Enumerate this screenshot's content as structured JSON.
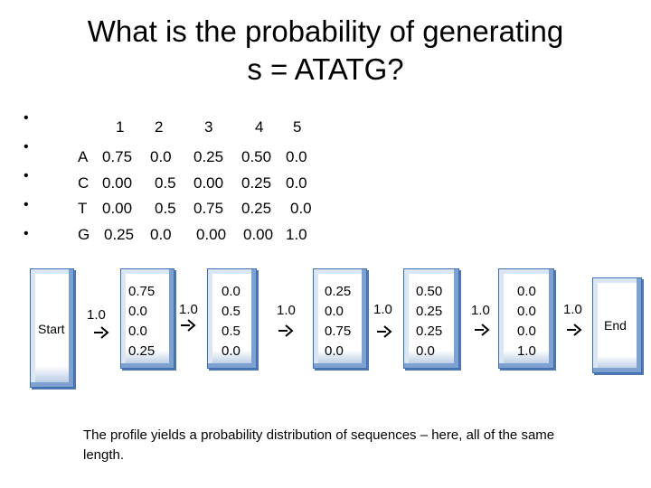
{
  "title": {
    "line1": "What is the probability of generating",
    "line2": "s = ATATG?"
  },
  "profile": {
    "columns": [
      "1",
      "2",
      "3",
      "4",
      "5"
    ],
    "rows": [
      {
        "base": "A",
        "values": [
          "0.75",
          "0.0",
          "0.25",
          "0.50",
          "0.0"
        ]
      },
      {
        "base": "C",
        "values": [
          "0.00",
          "0.5",
          "0.00",
          "0.25",
          "0.0"
        ]
      },
      {
        "base": "T",
        "values": [
          "0.00",
          "0.5",
          "0.75",
          "0.25",
          "0.0"
        ]
      },
      {
        "base": "G",
        "values": [
          "0.25",
          "0.0",
          "0.00",
          "0.00",
          "1.0"
        ]
      }
    ]
  },
  "model": {
    "start_label": "Start",
    "end_label": "End",
    "transitions": [
      "1.0",
      "1.0",
      "1.0",
      "1.0",
      "1.0",
      "1.0"
    ],
    "states": [
      {
        "values": [
          "0.75",
          "0.0",
          "0.0",
          "0.25"
        ]
      },
      {
        "values": [
          "0.0",
          "0.5",
          "0.5",
          "0.0"
        ]
      },
      {
        "values": [
          "0.25",
          "0.0",
          "0.75",
          "0.0"
        ]
      },
      {
        "values": [
          "0.50",
          "0.25",
          "0.25",
          "0.0"
        ]
      },
      {
        "values": [
          "0.0",
          "0.0",
          "0.0",
          "1.0"
        ]
      }
    ]
  },
  "caption": "The profile yields a probability distribution of sequences – here, all of the same length."
}
